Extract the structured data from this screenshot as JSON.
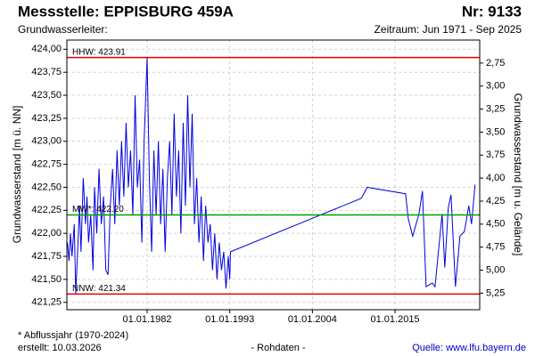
{
  "chart_data": {
    "type": "line",
    "title": "Messstelle: EPPISBURG 459A",
    "number": "Nr: 9133",
    "subtitle": "Grundwasserleiter:",
    "period": "Zeitraum: Jun 1971 - Sep 2025",
    "ylabel": "Grundwasserstand [m ü. NN]",
    "y2label": "Grundwasserstand [m u. Gelände]",
    "footnote": "* Abflussjahr (1970-2024)",
    "created": "erstellt:  10.03.2026",
    "note": "- Rohdaten -",
    "source": "Quelle:  www.lfu.bayern.de",
    "grid": true,
    "xlim": [
      1971.32,
      2026.27
    ],
    "xticks": [
      {
        "value": 1982,
        "label": "01.01.1982"
      },
      {
        "value": 1993,
        "label": "01.01.1993"
      },
      {
        "value": 2004,
        "label": "01.01.2004"
      },
      {
        "value": 2015,
        "label": "01.01.2015"
      }
    ],
    "ylim": [
      421.17,
      424.1
    ],
    "yticks": [
      {
        "value": 421.25,
        "label": "421,25"
      },
      {
        "value": 421.5,
        "label": "421,50"
      },
      {
        "value": 421.75,
        "label": "421,75"
      },
      {
        "value": 422,
        "label": "422,00"
      },
      {
        "value": 422.25,
        "label": "422,25"
      },
      {
        "value": 422.5,
        "label": "422,50"
      },
      {
        "value": 422.75,
        "label": "422,75"
      },
      {
        "value": 423,
        "label": "423,00"
      },
      {
        "value": 423.25,
        "label": "423,25"
      },
      {
        "value": 423.5,
        "label": "423,50"
      },
      {
        "value": 423.75,
        "label": "423,75"
      },
      {
        "value": 424,
        "label": "424,00"
      }
    ],
    "y2lim": [
      5.43,
      2.5
    ],
    "y2ticks": [
      {
        "value": 2.75,
        "label": "2,75"
      },
      {
        "value": 3,
        "label": "3,00"
      },
      {
        "value": 3.25,
        "label": "3,25"
      },
      {
        "value": 3.5,
        "label": "3,50"
      },
      {
        "value": 3.75,
        "label": "3,75"
      },
      {
        "value": 4,
        "label": "4,00"
      },
      {
        "value": 4.25,
        "label": "4,25"
      },
      {
        "value": 4.5,
        "label": "4,50"
      },
      {
        "value": 4.75,
        "label": "4,75"
      },
      {
        "value": 5,
        "label": "5,00"
      },
      {
        "value": 5.25,
        "label": "5,25"
      }
    ],
    "reference_lines": [
      {
        "label": "HHW: 423.91",
        "value": 423.91,
        "color": "#e00000"
      },
      {
        "label": "MW*: 422.20",
        "value": 422.2,
        "color": "#00a000"
      },
      {
        "label": "NNW: 421.34",
        "value": 421.34,
        "color": "#e00000"
      }
    ],
    "series": [
      {
        "color": "#0000e0",
        "x": [
          1971.4,
          1971.6,
          1971.8,
          1972.0,
          1972.3,
          1972.5,
          1972.8,
          1973.0,
          1973.2,
          1973.5,
          1973.8,
          1974.0,
          1974.2,
          1974.5,
          1974.8,
          1975.0,
          1975.3,
          1975.6,
          1975.9,
          1976.2,
          1976.5,
          1976.8,
          1977.1,
          1977.4,
          1977.7,
          1978.0,
          1978.3,
          1978.6,
          1978.9,
          1979.2,
          1979.5,
          1979.8,
          1980.1,
          1980.4,
          1980.7,
          1981.0,
          1981.3,
          1981.6,
          1982.0,
          1982.3,
          1982.6,
          1982.9,
          1983.2,
          1983.5,
          1983.8,
          1984.1,
          1984.4,
          1984.7,
          1985.0,
          1985.3,
          1985.6,
          1985.9,
          1986.2,
          1986.5,
          1986.8,
          1987.1,
          1987.4,
          1987.7,
          1988.0,
          1988.3,
          1988.6,
          1988.9,
          1989.2,
          1989.5,
          1989.8,
          1990.1,
          1990.4,
          1990.7,
          1991.0,
          1991.3,
          1991.6,
          1991.9,
          1992.2,
          1992.5,
          1992.8,
          1993.0,
          1993.1,
          2010.5,
          2011.3,
          2016.4,
          2016.76,
          2017.35,
          2018.18,
          2018.65,
          2019.13,
          2019.96,
          2020.32,
          2021.26,
          2021.62,
          2022.09,
          2022.45,
          2023.04,
          2023.64,
          2024.23,
          2024.82,
          2025.18,
          2025.65
        ],
        "values": [
          421.9,
          421.7,
          422.0,
          421.75,
          422.1,
          421.34,
          421.9,
          422.3,
          421.8,
          422.6,
          422.1,
          422.4,
          421.9,
          422.2,
          421.6,
          422.5,
          422.0,
          422.7,
          422.1,
          422.4,
          421.6,
          421.55,
          422.3,
          422.7,
          422.1,
          422.9,
          422.3,
          423.0,
          422.4,
          423.2,
          422.5,
          422.9,
          422.2,
          423.5,
          422.5,
          422.8,
          421.9,
          423.0,
          423.91,
          422.6,
          421.8,
          422.9,
          422.2,
          423.0,
          422.1,
          422.7,
          421.8,
          422.6,
          423.0,
          422.2,
          423.3,
          422.4,
          422.9,
          422.0,
          423.2,
          422.3,
          423.5,
          422.5,
          423.3,
          422.1,
          422.6,
          421.9,
          422.4,
          421.7,
          422.3,
          421.9,
          422.1,
          421.6,
          422.0,
          421.5,
          421.9,
          421.6,
          421.8,
          421.4,
          421.75,
          421.5,
          421.8,
          422.38,
          422.5,
          422.43,
          422.16,
          421.97,
          422.21,
          422.46,
          421.42,
          421.46,
          421.42,
          422.21,
          421.63,
          422.28,
          422.42,
          421.42,
          421.97,
          422.02,
          422.3,
          422.1,
          422.53
        ]
      }
    ]
  }
}
